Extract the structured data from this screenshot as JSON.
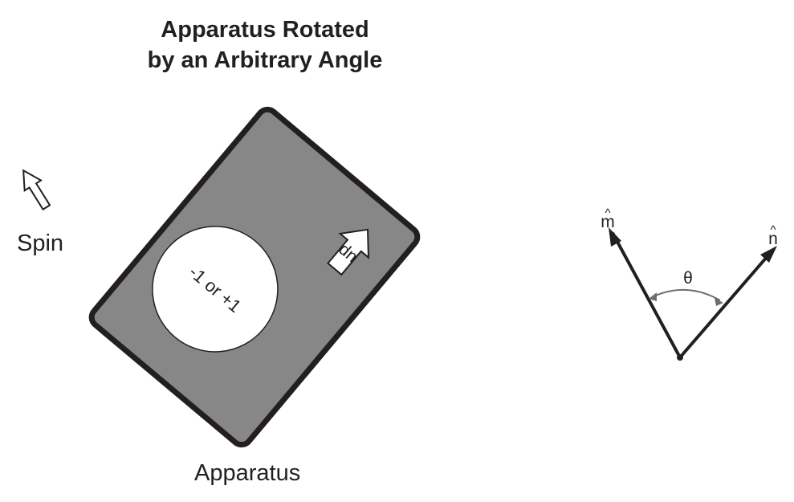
{
  "title": {
    "line1": "Apparatus Rotated",
    "line2": "by an Arbitrary Angle"
  },
  "spin_label": "Spin",
  "apparatus": {
    "label": "Apparatus",
    "up_label": "up",
    "readout": "-1 or +1"
  },
  "vectors": {
    "m_label": "m",
    "n_label": "n",
    "hat": "^",
    "angle_label": "θ"
  },
  "colors": {
    "apparatus_body": "#878787",
    "outline": "#231f20",
    "angle_arc": "#6d6d6d",
    "background": "#ffffff"
  }
}
